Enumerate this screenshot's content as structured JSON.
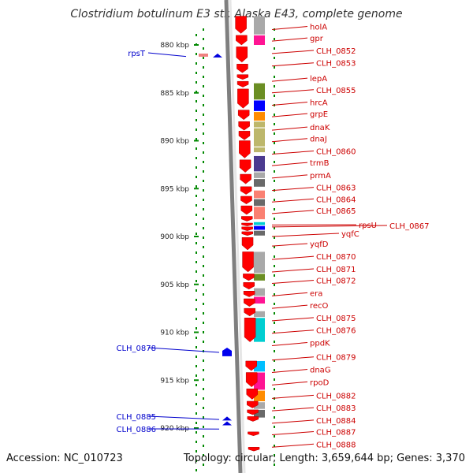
{
  "title": "Clostridium botulinum E3 str. Alaska E43, complete genome",
  "footer": {
    "accession": "Accession: NC_010723",
    "topology": "Topology: circular; Length: 3,659,644 bp; Genes: 3,370"
  },
  "colors": {
    "backbone": "#7f7f7f",
    "gene_arrow": "#ff0000",
    "right_label": "#cc0000",
    "left_label": "#0000cc",
    "dotted_track": "#008800",
    "cog_palette": [
      "#4b3a8f",
      "#ff1493",
      "#6b8e23",
      "#0000ff",
      "#ff8c00",
      "#bdb76b",
      "#fa8072",
      "#a9a9a9",
      "#00ced1",
      "#696969",
      "#00bfff"
    ]
  },
  "ticks": [
    {
      "label": "880 kbp",
      "kbp": 880
    },
    {
      "label": "885 kbp",
      "kbp": 885
    },
    {
      "label": "890 kbp",
      "kbp": 890
    },
    {
      "label": "895 kbp",
      "kbp": 895
    },
    {
      "label": "900 kbp",
      "kbp": 900
    },
    {
      "label": "905 kbp",
      "kbp": 905
    },
    {
      "label": "910 kbp",
      "kbp": 910
    },
    {
      "label": "915 kbp",
      "kbp": 915
    },
    {
      "label": "920 kbp",
      "kbp": 920
    }
  ],
  "right_genes": [
    {
      "name": "holA",
      "kbp": 878.4
    },
    {
      "name": "gpr",
      "kbp": 879.6
    },
    {
      "name": "CLH_0852",
      "kbp": 880.9
    },
    {
      "name": "CLH_0853",
      "kbp": 882.2
    },
    {
      "name": "lepA",
      "kbp": 883.8
    },
    {
      "name": "CLH_0855",
      "kbp": 885.0
    },
    {
      "name": "hrcA",
      "kbp": 886.3
    },
    {
      "name": "grpE",
      "kbp": 887.5
    },
    {
      "name": "dnaK",
      "kbp": 888.9
    },
    {
      "name": "dnaJ",
      "kbp": 890.1
    },
    {
      "name": "CLH_0860",
      "kbp": 891.4
    },
    {
      "name": "trmB",
      "kbp": 892.6
    },
    {
      "name": "prmA",
      "kbp": 893.9
    },
    {
      "name": "CLH_0863",
      "kbp": 895.2
    },
    {
      "name": "CLH_0864",
      "kbp": 896.4
    },
    {
      "name": "CLH_0865",
      "kbp": 897.6
    },
    {
      "name": "rpsU",
      "kbp": 898.8
    },
    {
      "name": "CLH_0867",
      "kbp": 899.0
    },
    {
      "name": "yqfC",
      "kbp": 900.0
    },
    {
      "name": "yqfD",
      "kbp": 901.0
    },
    {
      "name": "CLH_0870",
      "kbp": 902.4
    },
    {
      "name": "CLH_0871",
      "kbp": 903.7
    },
    {
      "name": "CLH_0872",
      "kbp": 904.9
    },
    {
      "name": "era",
      "kbp": 906.2
    },
    {
      "name": "recO",
      "kbp": 907.5
    },
    {
      "name": "CLH_0875",
      "kbp": 908.8
    },
    {
      "name": "CLH_0876",
      "kbp": 910.1
    },
    {
      "name": "ppdK",
      "kbp": 911.4
    },
    {
      "name": "CLH_0879",
      "kbp": 912.9
    },
    {
      "name": "dnaG",
      "kbp": 914.2
    },
    {
      "name": "rpoD",
      "kbp": 915.5
    },
    {
      "name": "CLH_0882",
      "kbp": 916.9
    },
    {
      "name": "CLH_0883",
      "kbp": 918.2
    },
    {
      "name": "CLH_0884",
      "kbp": 919.5
    },
    {
      "name": "CLH_0887",
      "kbp": 920.7
    },
    {
      "name": "CLH_0888",
      "kbp": 922.0
    }
  ],
  "left_genes": [
    {
      "name": "rpsT",
      "kbp": 881.2
    },
    {
      "name": "CLH_0878",
      "kbp": 912.1
    },
    {
      "name": "CLH_0885",
      "kbp": 919.1
    },
    {
      "name": "CLH_0886",
      "kbp": 920.1
    }
  ],
  "blocks": [
    {
      "start": 877.0,
      "end": 878.9,
      "c": 7
    },
    {
      "start": 879.0,
      "end": 880.0,
      "c": 1
    },
    {
      "start": 884.0,
      "end": 885.7,
      "c": 2
    },
    {
      "start": 885.8,
      "end": 886.9,
      "c": 3
    },
    {
      "start": 887.0,
      "end": 887.9,
      "c": 4
    },
    {
      "start": 888.0,
      "end": 888.6,
      "c": 5
    },
    {
      "start": 888.7,
      "end": 890.6,
      "c": 5
    },
    {
      "start": 890.7,
      "end": 891.2,
      "c": 5
    },
    {
      "start": 891.6,
      "end": 893.2,
      "c": 0
    },
    {
      "start": 893.3,
      "end": 893.9,
      "c": 7
    },
    {
      "start": 894.0,
      "end": 894.8,
      "c": 9
    },
    {
      "start": 895.2,
      "end": 896.0,
      "c": 6
    },
    {
      "start": 896.1,
      "end": 896.8,
      "c": 9
    },
    {
      "start": 896.9,
      "end": 898.2,
      "c": 6
    },
    {
      "start": 898.5,
      "end": 898.8,
      "c": 8
    },
    {
      "start": 898.9,
      "end": 899.3,
      "c": 3
    },
    {
      "start": 899.4,
      "end": 899.9,
      "c": 9
    },
    {
      "start": 901.6,
      "end": 903.8,
      "c": 7
    },
    {
      "start": 903.9,
      "end": 904.6,
      "c": 2
    },
    {
      "start": 905.4,
      "end": 906.2,
      "c": 7
    },
    {
      "start": 906.3,
      "end": 907.0,
      "c": 1
    },
    {
      "start": 907.8,
      "end": 908.4,
      "c": 7
    },
    {
      "start": 908.5,
      "end": 911.0,
      "c": 8
    },
    {
      "start": 913.0,
      "end": 914.1,
      "c": 10
    },
    {
      "start": 914.2,
      "end": 916.0,
      "c": 1
    },
    {
      "start": 916.1,
      "end": 917.2,
      "c": 4
    },
    {
      "start": 917.3,
      "end": 918.0,
      "c": 7
    },
    {
      "start": 918.1,
      "end": 918.9,
      "c": 9
    }
  ],
  "arrows_right": [
    {
      "start": 877.0,
      "end": 878.8
    },
    {
      "start": 879.0,
      "end": 880.0
    },
    {
      "start": 880.2,
      "end": 881.8
    },
    {
      "start": 882.0,
      "end": 882.9
    },
    {
      "start": 883.1,
      "end": 883.6
    },
    {
      "start": 883.8,
      "end": 884.4
    },
    {
      "start": 884.6,
      "end": 886.6
    },
    {
      "start": 886.8,
      "end": 887.8
    },
    {
      "start": 888.0,
      "end": 888.9
    },
    {
      "start": 889.0,
      "end": 889.9
    },
    {
      "start": 890.0,
      "end": 891.8
    },
    {
      "start": 892.0,
      "end": 893.3
    },
    {
      "start": 893.5,
      "end": 894.5
    },
    {
      "start": 894.8,
      "end": 895.6
    },
    {
      "start": 895.8,
      "end": 896.6
    },
    {
      "start": 896.8,
      "end": 897.7
    },
    {
      "start": 897.9,
      "end": 898.4
    },
    {
      "start": 898.6,
      "end": 898.9
    },
    {
      "start": 899.0,
      "end": 899.4
    },
    {
      "start": 899.5,
      "end": 899.9
    },
    {
      "start": 900.1,
      "end": 901.4
    },
    {
      "start": 901.6,
      "end": 903.7
    },
    {
      "start": 903.9,
      "end": 904.6
    },
    {
      "start": 904.8,
      "end": 905.5
    },
    {
      "start": 905.7,
      "end": 906.3
    },
    {
      "start": 906.5,
      "end": 907.3
    },
    {
      "start": 907.5,
      "end": 908.3
    },
    {
      "start": 908.5,
      "end": 911.0
    },
    {
      "start": 913.0,
      "end": 914.0
    },
    {
      "start": 914.2,
      "end": 915.7
    },
    {
      "start": 915.9,
      "end": 917.0
    },
    {
      "start": 917.2,
      "end": 917.9
    },
    {
      "start": 918.1,
      "end": 918.6
    },
    {
      "start": 918.8,
      "end": 919.3
    },
    {
      "start": 920.4,
      "end": 920.8
    },
    {
      "start": 922.0,
      "end": 922.4
    }
  ],
  "arrows_left": [
    {
      "start": 880.9,
      "end": 881.2,
      "kind": "bar"
    },
    {
      "start": 880.9,
      "end": 881.4,
      "kind": "tri"
    },
    {
      "start": 911.6,
      "end": 912.5,
      "kind": "pent"
    },
    {
      "start": 918.8,
      "end": 919.2,
      "kind": "tri"
    },
    {
      "start": 919.3,
      "end": 919.7,
      "kind": "tri"
    }
  ]
}
